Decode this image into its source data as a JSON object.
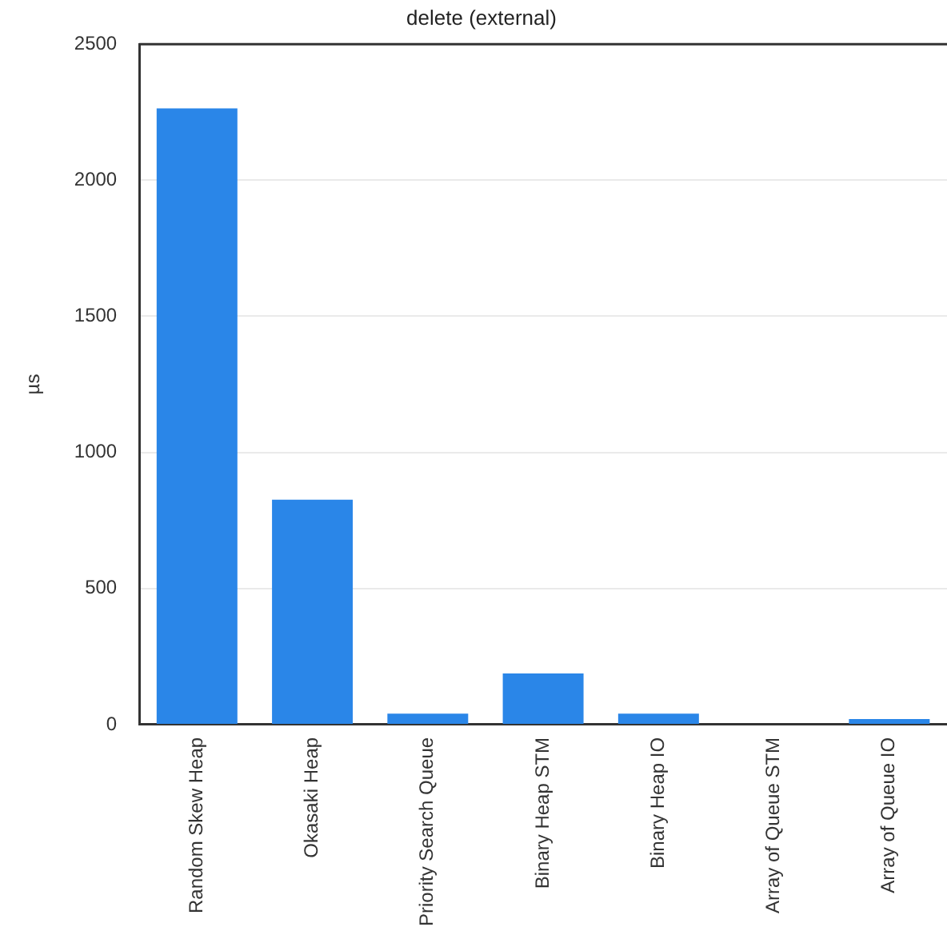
{
  "chart_data": {
    "type": "bar",
    "title": "delete (external)",
    "ylabel": "µs",
    "categories": [
      "Random Skew Heap",
      "Okasaki Heap",
      "Priority Search Queue",
      "Binary Heap STM",
      "Binary Heap IO",
      "Array of Queue STM",
      "Array of Queue IO"
    ],
    "values": [
      2264,
      826,
      40,
      188,
      40,
      null,
      20
    ],
    "color": "#2a86e8",
    "ylim": [
      0,
      2500
    ],
    "yticks": [
      0,
      500,
      1000,
      1500,
      2000,
      2500
    ],
    "grid": "y"
  }
}
